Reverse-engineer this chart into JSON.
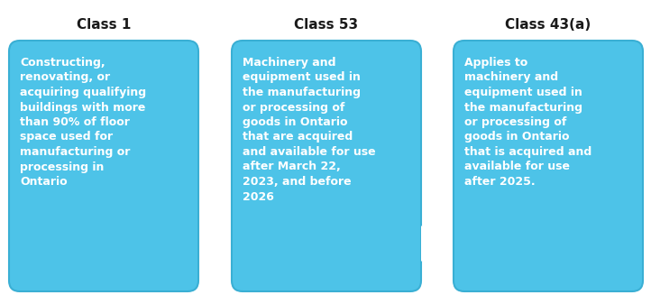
{
  "background_color": "#ffffff",
  "box_color": "#4DC3E8",
  "box_edge_color": "#3AAFD4",
  "text_color": "#ffffff",
  "title_color": "#1a1a1a",
  "titles": [
    "Class 1",
    "Class 53",
    "Class 43(a)"
  ],
  "texts": [
    "Constructing,\nrenovating, or\nacquiring qualifying\nbuildings with more\nthan 90% of floor\nspace used for\nmanufacturing or\nprocessing in\nOntario",
    "Machinery and\nequipment used in\nthe manufacturing\nor processing of\ngoods in Ontario\nthat are acquired\nand available for use\nafter March 22,\n2023, and before\n2026",
    "Applies to\nmachinery and\nequipment used in\nthe manufacturing\nor processing of\ngoods in Ontario\nthat is acquired and\navailable for use\nafter 2025."
  ],
  "title_fontsize": 11,
  "text_fontsize": 9.0,
  "fig_width": 7.22,
  "fig_height": 3.37,
  "dpi": 100
}
